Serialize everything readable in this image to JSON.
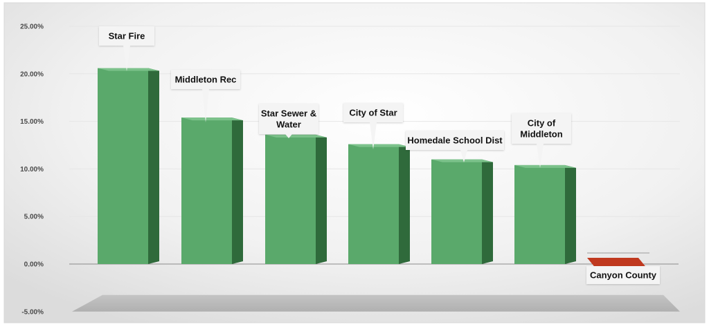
{
  "chart_data": {
    "type": "bar",
    "categories": [
      "Star Fire",
      "Middleton Rec",
      "Star Sewer & Water",
      "City of Star",
      "Homedale School Dist",
      "City of Middleton",
      "Canyon County"
    ],
    "label_lines": [
      [
        "Star Fire"
      ],
      [
        "Middleton Rec"
      ],
      [
        "Star Sewer &",
        "Water"
      ],
      [
        "City of Star"
      ],
      [
        "Homedale School Dist"
      ],
      [
        "City of",
        "Middleton"
      ],
      [
        "Canyon County"
      ]
    ],
    "values": [
      20.6,
      15.4,
      13.6,
      12.6,
      11.0,
      10.4,
      -0.3
    ],
    "ylim": [
      -5,
      25
    ],
    "yticks": [
      -5,
      0,
      5,
      10,
      15,
      20,
      25
    ],
    "ytick_labels": [
      "-5.00%",
      "0.00%",
      "5.00%",
      "10.00%",
      "15.00%",
      "20.00%",
      "25.00%"
    ],
    "grid": true,
    "legend": "none",
    "colors": {
      "positive_front": "#5aa96b",
      "positive_side": "#2f6a3b",
      "negative_front": "#c0391f",
      "negative_side": "#7d2314",
      "callout_bg": "#f4f4f4"
    }
  }
}
